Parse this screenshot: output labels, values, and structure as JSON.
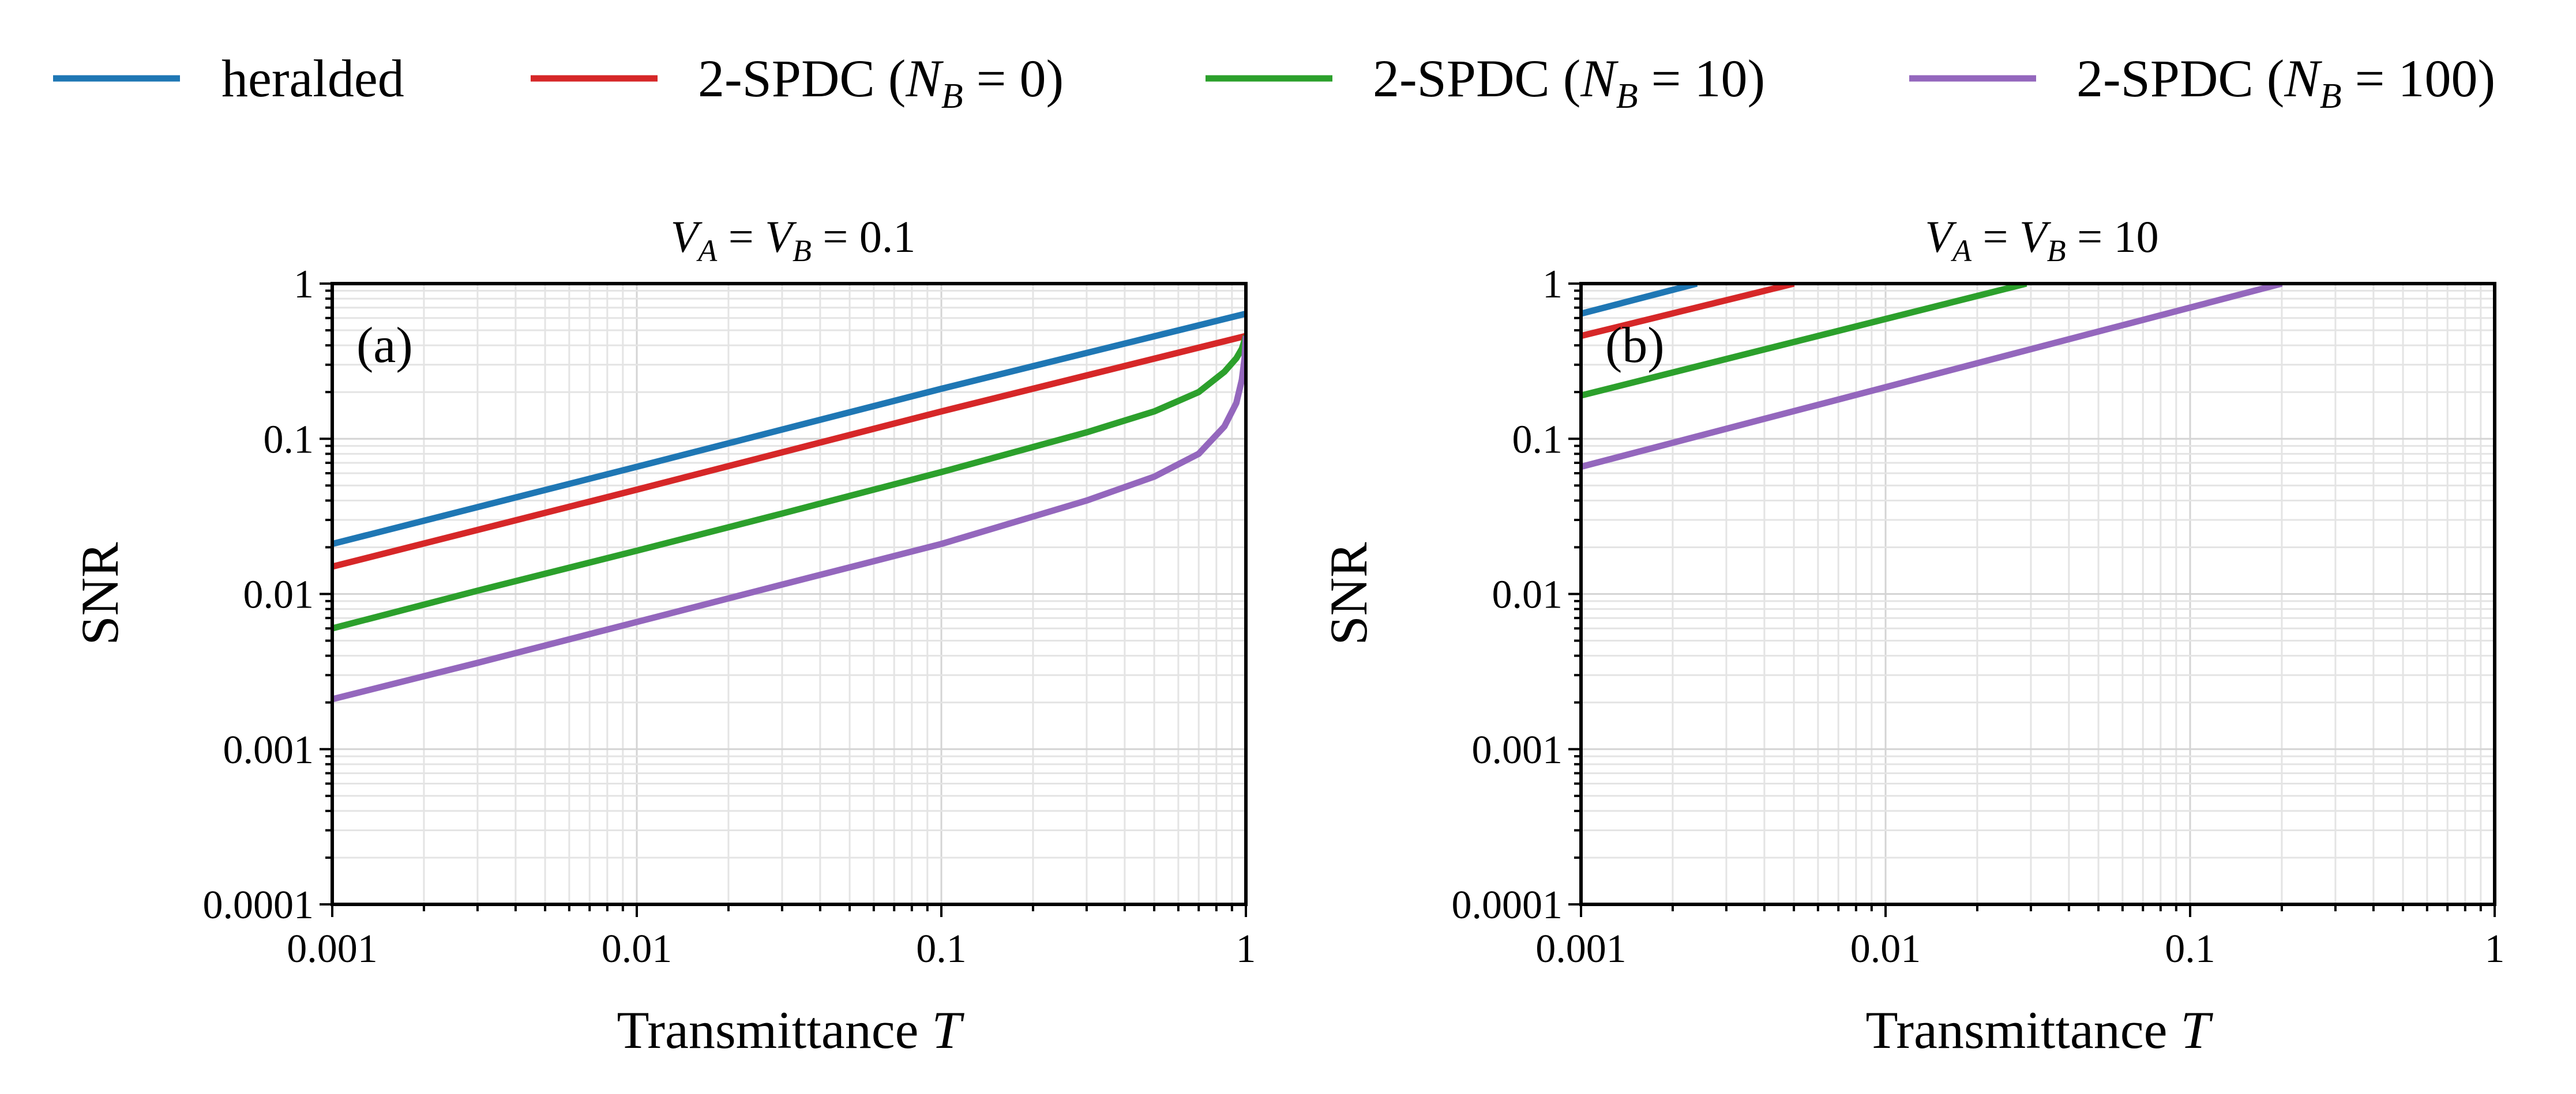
{
  "legend": [
    {
      "key": "heralded",
      "label": "heralded",
      "color": "#1f77b4"
    },
    {
      "key": "nb0",
      "label": "2-SPDC (",
      "math": "N",
      "sub": "B",
      "suffix": " = 0)",
      "color": "#d62728"
    },
    {
      "key": "nb10",
      "label": "2-SPDC (",
      "math": "N",
      "sub": "B",
      "suffix": " = 10)",
      "color": "#2ca02c"
    },
    {
      "key": "nb100",
      "label": "2-SPDC (",
      "math": "N",
      "sub": "B",
      "suffix": " = 100)",
      "color": "#9467bd"
    }
  ],
  "chart_data": [
    {
      "type": "line",
      "panel_label": "(a)",
      "title_parts": {
        "v": "V",
        "a": "A",
        "b": "B",
        "eq": " = ",
        "value": "0.1"
      },
      "xlabel": "Transmittance",
      "xlabel_var": "T",
      "ylabel": "SNR",
      "xscale": "log",
      "yscale": "log",
      "xlim": [
        0.001,
        1
      ],
      "ylim": [
        0.0001,
        1
      ],
      "grid": true,
      "xticks": [
        "0.001",
        "0.01",
        "0.1",
        "1"
      ],
      "yticks": [
        "0.0001",
        "0.001",
        "0.01",
        "0.1",
        "1"
      ],
      "series": [
        {
          "name": "heralded",
          "color": "#1f77b4",
          "x": [
            0.001,
            0.01,
            0.1,
            1
          ],
          "y": [
            0.021,
            0.066,
            0.21,
            0.64
          ]
        },
        {
          "name": "2-SPDC (N_B = 0)",
          "color": "#d62728",
          "x": [
            0.001,
            0.01,
            0.1,
            1
          ],
          "y": [
            0.015,
            0.047,
            0.15,
            0.46
          ]
        },
        {
          "name": "2-SPDC (N_B = 10)",
          "color": "#2ca02c",
          "x": [
            0.001,
            0.003,
            0.01,
            0.03,
            0.1,
            0.3,
            0.5,
            0.7,
            0.85,
            0.93,
            0.97,
            1
          ],
          "y": [
            0.006,
            0.0105,
            0.019,
            0.033,
            0.061,
            0.11,
            0.15,
            0.2,
            0.27,
            0.33,
            0.38,
            0.46
          ]
        },
        {
          "name": "2-SPDC (N_B = 100)",
          "color": "#9467bd",
          "x": [
            0.001,
            0.003,
            0.01,
            0.03,
            0.1,
            0.3,
            0.5,
            0.7,
            0.85,
            0.93,
            0.97,
            0.99,
            1
          ],
          "y": [
            0.0021,
            0.0036,
            0.0066,
            0.0115,
            0.021,
            0.04,
            0.057,
            0.08,
            0.12,
            0.17,
            0.24,
            0.33,
            0.46
          ]
        }
      ]
    },
    {
      "type": "line",
      "panel_label": "(b)",
      "title_parts": {
        "v": "V",
        "a": "A",
        "b": "B",
        "eq": " = ",
        "value": "10"
      },
      "xlabel": "Transmittance",
      "xlabel_var": "T",
      "ylabel": "SNR",
      "xscale": "log",
      "yscale": "log",
      "xlim": [
        0.001,
        1
      ],
      "ylim": [
        0.0001,
        1
      ],
      "grid": true,
      "xticks": [
        "0.001",
        "0.01",
        "0.1",
        "1"
      ],
      "yticks": [
        "0.0001",
        "0.001",
        "0.01",
        "0.1",
        "1"
      ],
      "series": [
        {
          "name": "heralded",
          "color": "#1f77b4",
          "x": [
            0.001,
            0.0024
          ],
          "y": [
            0.64,
            1.0
          ]
        },
        {
          "name": "2-SPDC (N_B = 0)",
          "color": "#d62728",
          "x": [
            0.001,
            0.005
          ],
          "y": [
            0.46,
            1.0
          ]
        },
        {
          "name": "2-SPDC (N_B = 10)",
          "color": "#2ca02c",
          "x": [
            0.001,
            0.029
          ],
          "y": [
            0.19,
            1.0
          ]
        },
        {
          "name": "2-SPDC (N_B = 100)",
          "color": "#9467bd",
          "x": [
            0.001,
            0.2
          ],
          "y": [
            0.066,
            1.0
          ]
        }
      ]
    }
  ]
}
